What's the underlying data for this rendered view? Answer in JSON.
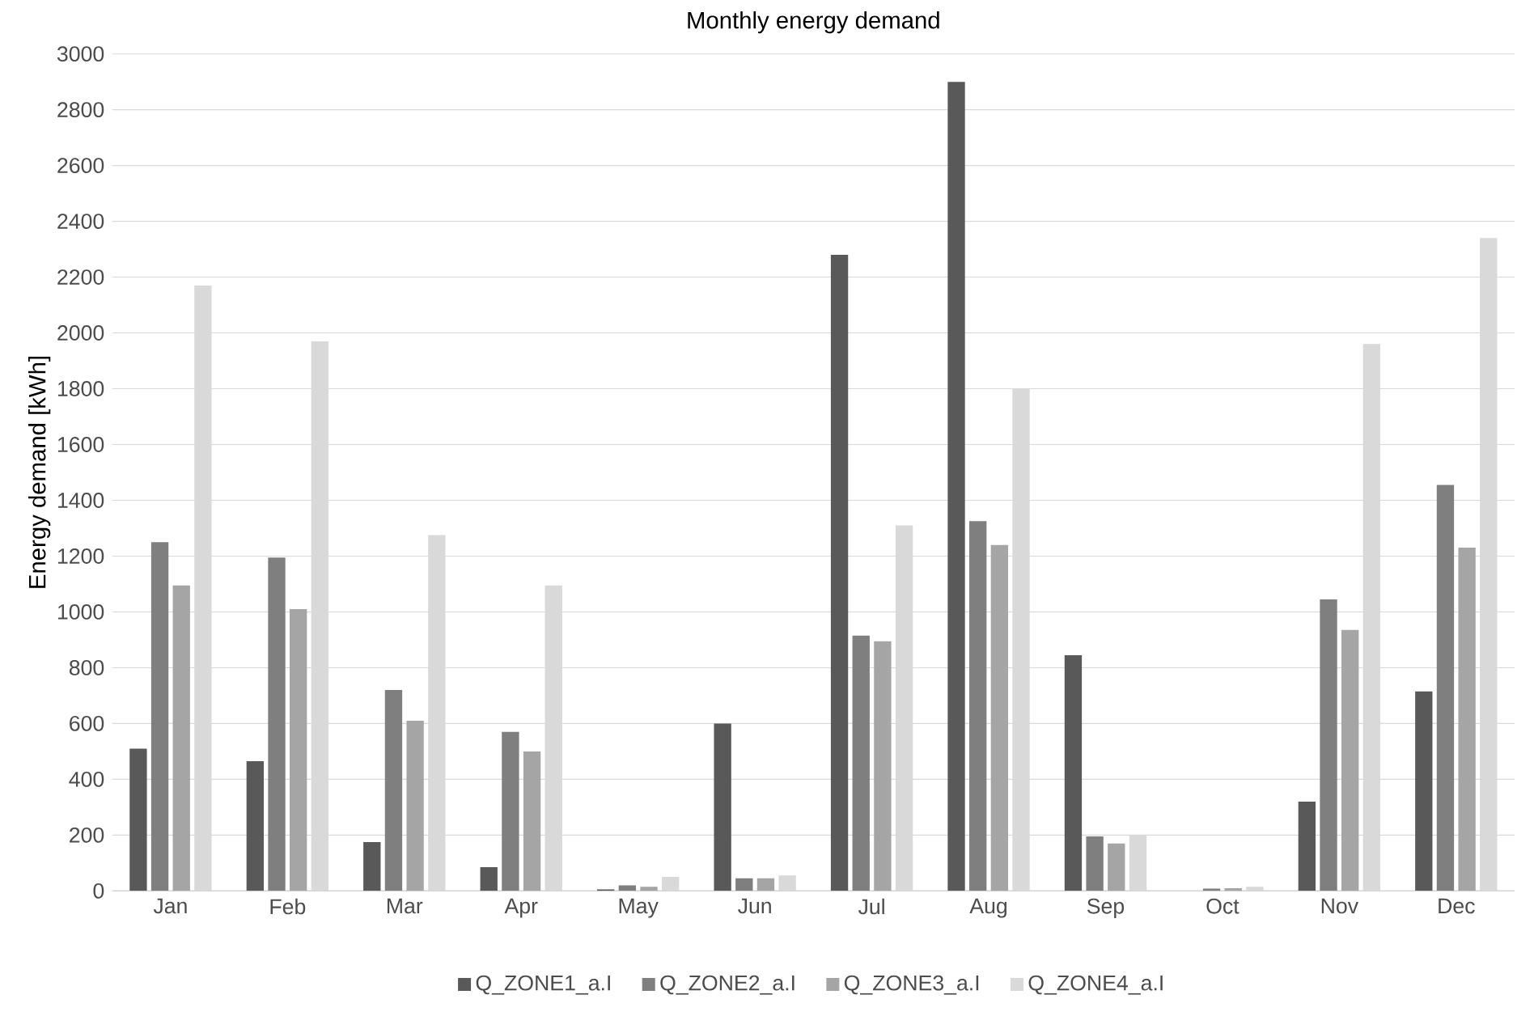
{
  "chart_data": {
    "type": "bar",
    "title": "Monthly energy demand",
    "ylabel": "Energy demand [kWh]",
    "categories": [
      "Jan",
      "Feb",
      "Mar",
      "Apr",
      "May",
      "Jun",
      "Jul",
      "Aug",
      "Sep",
      "Oct",
      "Nov",
      "Dec"
    ],
    "series": [
      {
        "name": "Q_ZONE1_a.I",
        "color": "#595959",
        "values": [
          510,
          465,
          175,
          85,
          5,
          600,
          2280,
          2900,
          845,
          null,
          320,
          715
        ]
      },
      {
        "name": "Q_ZONE2_a.I",
        "color": "#7f7f7f",
        "values": [
          1250,
          1195,
          720,
          570,
          20,
          45,
          915,
          1325,
          195,
          8,
          1045,
          1455
        ]
      },
      {
        "name": "Q_ZONE3_a.I",
        "color": "#a5a5a5",
        "values": [
          1095,
          1010,
          610,
          500,
          15,
          45,
          895,
          1240,
          170,
          10,
          935,
          1230
        ]
      },
      {
        "name": "Q_ZONE4_a.I",
        "color": "#d9d9d9",
        "values": [
          2170,
          1970,
          1275,
          1095,
          50,
          55,
          1310,
          1800,
          200,
          15,
          1960,
          2340
        ]
      }
    ],
    "ylim": [
      0,
      3000
    ],
    "yticks": [
      0,
      200,
      400,
      600,
      800,
      1000,
      1200,
      1400,
      1600,
      1800,
      2000,
      2200,
      2400,
      2600,
      2800,
      3000
    ],
    "grid": "y",
    "legend": "bottom"
  }
}
